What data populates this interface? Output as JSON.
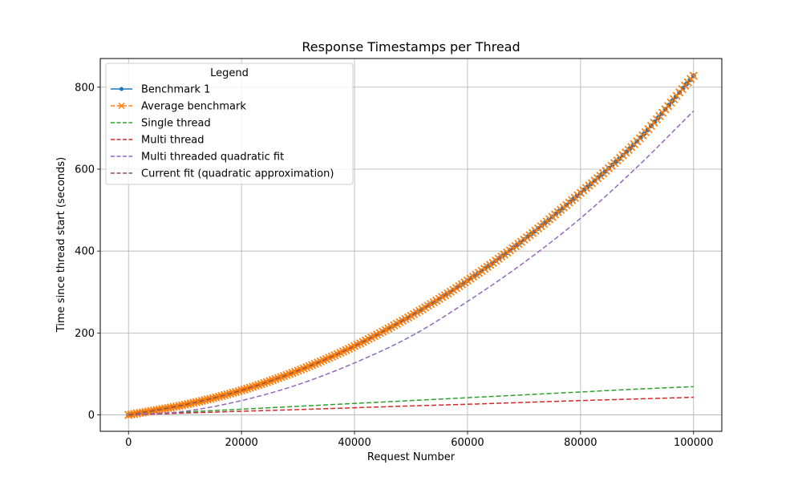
{
  "chart_data": {
    "type": "line",
    "title": "Response Timestamps per Thread",
    "xlabel": "Request Number",
    "ylabel": "Time since thread start (seconds)",
    "xlim": [
      -5000,
      105000
    ],
    "ylim": [
      -40,
      870
    ],
    "xticks": [
      0,
      20000,
      40000,
      60000,
      80000,
      100000
    ],
    "xtick_labels": [
      "0",
      "20000",
      "40000",
      "60000",
      "80000",
      "100000"
    ],
    "yticks": [
      0,
      200,
      400,
      600,
      800
    ],
    "ytick_labels": [
      "0",
      "200",
      "400",
      "600",
      "800"
    ],
    "grid": true,
    "legend": {
      "title": "Legend",
      "placement": "top-left"
    },
    "series": [
      {
        "name": "Benchmark 1",
        "color": "#1f77b4",
        "style": "solid",
        "marker": "dot",
        "x": [
          0,
          10000,
          20000,
          30000,
          40000,
          50000,
          60000,
          70000,
          80000,
          90000,
          100000
        ],
        "y": [
          0,
          25,
          60,
          108,
          168,
          242,
          328,
          428,
          542,
          668,
          828
        ]
      },
      {
        "name": "Average benchmark",
        "color": "#ff7f0e",
        "style": "dashed",
        "marker": "x",
        "x": [
          0,
          10000,
          20000,
          30000,
          40000,
          50000,
          60000,
          70000,
          80000,
          90000,
          100000
        ],
        "y": [
          0,
          25,
          60,
          108,
          168,
          242,
          328,
          428,
          542,
          668,
          828
        ]
      },
      {
        "name": "Single thread",
        "color": "#2ca02c",
        "style": "dashed",
        "x": [
          0,
          10000,
          20000,
          30000,
          40000,
          50000,
          60000,
          70000,
          80000,
          90000,
          100000
        ],
        "y": [
          0,
          7,
          14,
          21,
          28,
          35,
          42,
          49,
          56,
          63,
          69
        ]
      },
      {
        "name": "Multi thread",
        "color": "#d62728",
        "style": "dashed",
        "x": [
          0,
          10000,
          20000,
          30000,
          40000,
          50000,
          60000,
          70000,
          80000,
          90000,
          100000
        ],
        "y": [
          0,
          4.5,
          9,
          13,
          17.5,
          22,
          26,
          30.5,
          35,
          39,
          43
        ]
      },
      {
        "name": "Multi threaded quadratic fit",
        "color": "#9467bd",
        "style": "dashed",
        "x": [
          0,
          10000,
          20000,
          30000,
          40000,
          50000,
          60000,
          70000,
          80000,
          90000,
          100000
        ],
        "y": [
          0,
          9,
          35,
          74,
          127,
          192,
          277,
          372,
          480,
          605,
          742
        ]
      },
      {
        "name": "Current fit (quadratic approximation)",
        "color": "#8c564b",
        "style": "dashed",
        "x": [
          0,
          10000,
          20000,
          30000,
          40000,
          50000,
          60000,
          70000,
          80000,
          90000,
          100000
        ],
        "y": [
          0,
          25,
          60,
          108,
          168,
          242,
          328,
          428,
          542,
          668,
          828
        ]
      }
    ]
  }
}
